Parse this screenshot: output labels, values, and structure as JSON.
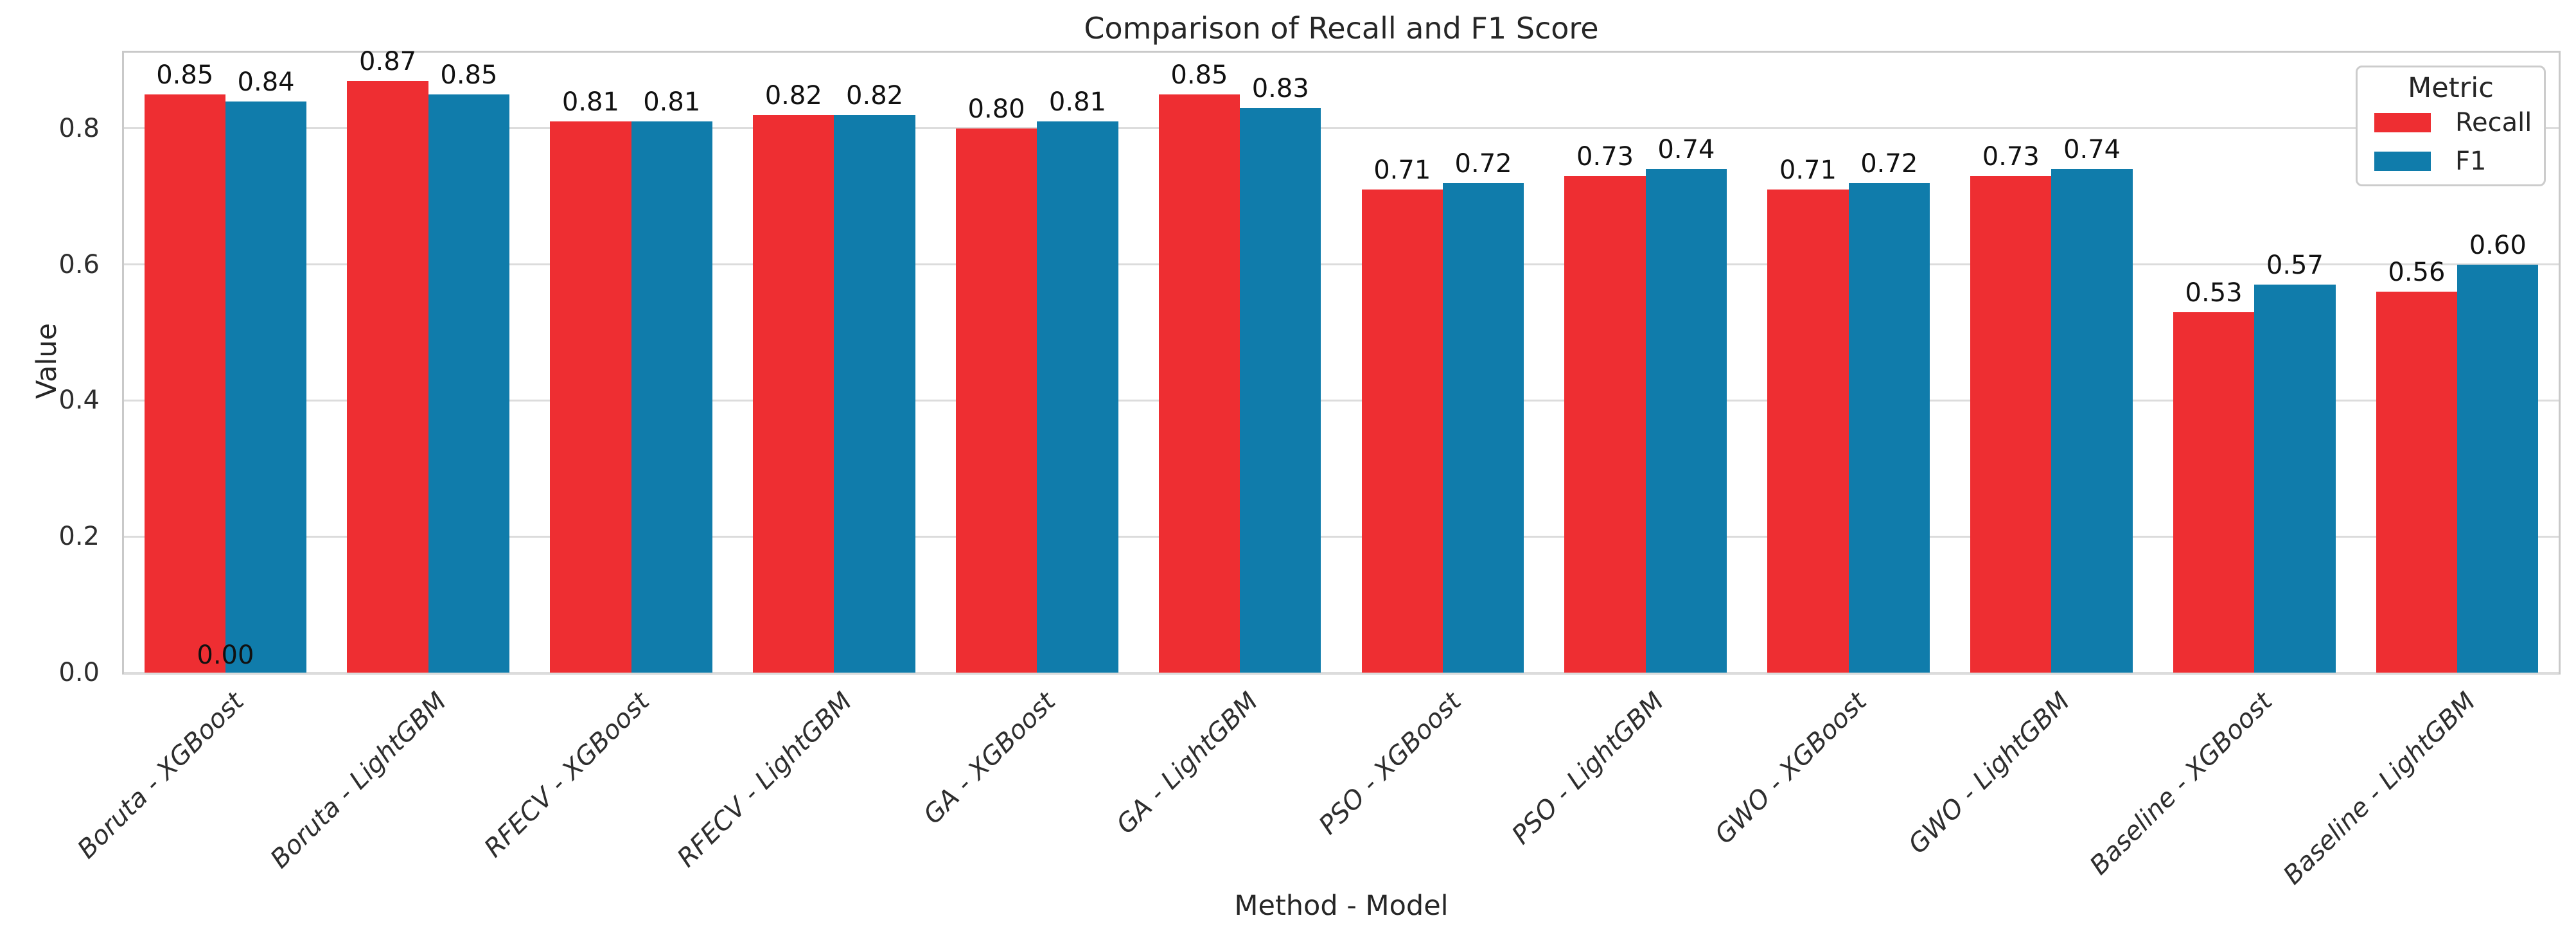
{
  "chart_data": {
    "type": "bar",
    "title": "Comparison of Recall and F1 Score",
    "xlabel": "Method - Model",
    "ylabel": "Value",
    "categories": [
      "Boruta - XGBoost",
      "Boruta - LightGBM",
      "RFECV - XGBoost",
      "RFECV - LightGBM",
      "GA - XGBoost",
      "GA - LightGBM",
      "PSO - XGBoost",
      "PSO - LightGBM",
      "GWO - XGBoost",
      "GWO - LightGBM",
      "Baseline - XGBoost",
      "Baseline - LightGBM"
    ],
    "series": [
      {
        "name": "Recall",
        "color": "#ee2e32",
        "values": [
          0.85,
          0.87,
          0.81,
          0.82,
          0.8,
          0.85,
          0.71,
          0.73,
          0.71,
          0.73,
          0.53,
          0.56
        ]
      },
      {
        "name": "F1",
        "color": "#107cab",
        "values": [
          0.84,
          0.85,
          0.81,
          0.82,
          0.81,
          0.83,
          0.72,
          0.74,
          0.72,
          0.74,
          0.57,
          0.6
        ]
      }
    ],
    "bar_value_labels_decimals": 2,
    "annotations": [
      {
        "text": "0.00",
        "category_index": 0,
        "position": "baseline"
      }
    ],
    "yticks": [
      "0.0",
      "0.2",
      "0.4",
      "0.6",
      "0.8"
    ],
    "ytick_values": [
      0.0,
      0.2,
      0.4,
      0.6,
      0.8
    ],
    "ylim": [
      0,
      0.9114
    ],
    "grid": true,
    "legend": {
      "title": "Metric",
      "position": "upper right"
    },
    "colors": {
      "grid": "#dcdcdc",
      "spine": "#c9c9c9",
      "text": "#262626",
      "value_label": "#111111"
    }
  }
}
